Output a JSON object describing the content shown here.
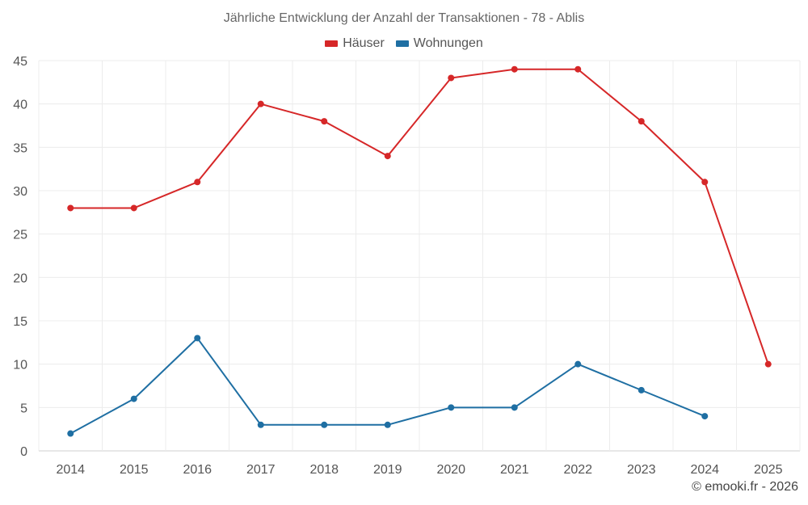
{
  "chart_data": {
    "type": "line",
    "title": "Jährliche Entwicklung der Anzahl der Transaktionen - 78 - Ablis",
    "xlabel": "",
    "ylabel": "",
    "categories": [
      "2014",
      "2015",
      "2016",
      "2017",
      "2018",
      "2019",
      "2020",
      "2021",
      "2022",
      "2023",
      "2024",
      "2025"
    ],
    "ylim": [
      0,
      45
    ],
    "yticks": [
      0,
      5,
      10,
      15,
      20,
      25,
      30,
      35,
      40,
      45
    ],
    "grid": true,
    "legend_position": "top-center",
    "series": [
      {
        "name": "Häuser",
        "color": "#d62728",
        "values": [
          28,
          28,
          31,
          40,
          38,
          34,
          43,
          44,
          44,
          38,
          31,
          10
        ]
      },
      {
        "name": "Wohnungen",
        "color": "#1f6fa3",
        "values": [
          2,
          6,
          13,
          3,
          3,
          3,
          5,
          5,
          10,
          7,
          4,
          null
        ]
      }
    ]
  },
  "credit": "© emooki.fr - 2026"
}
